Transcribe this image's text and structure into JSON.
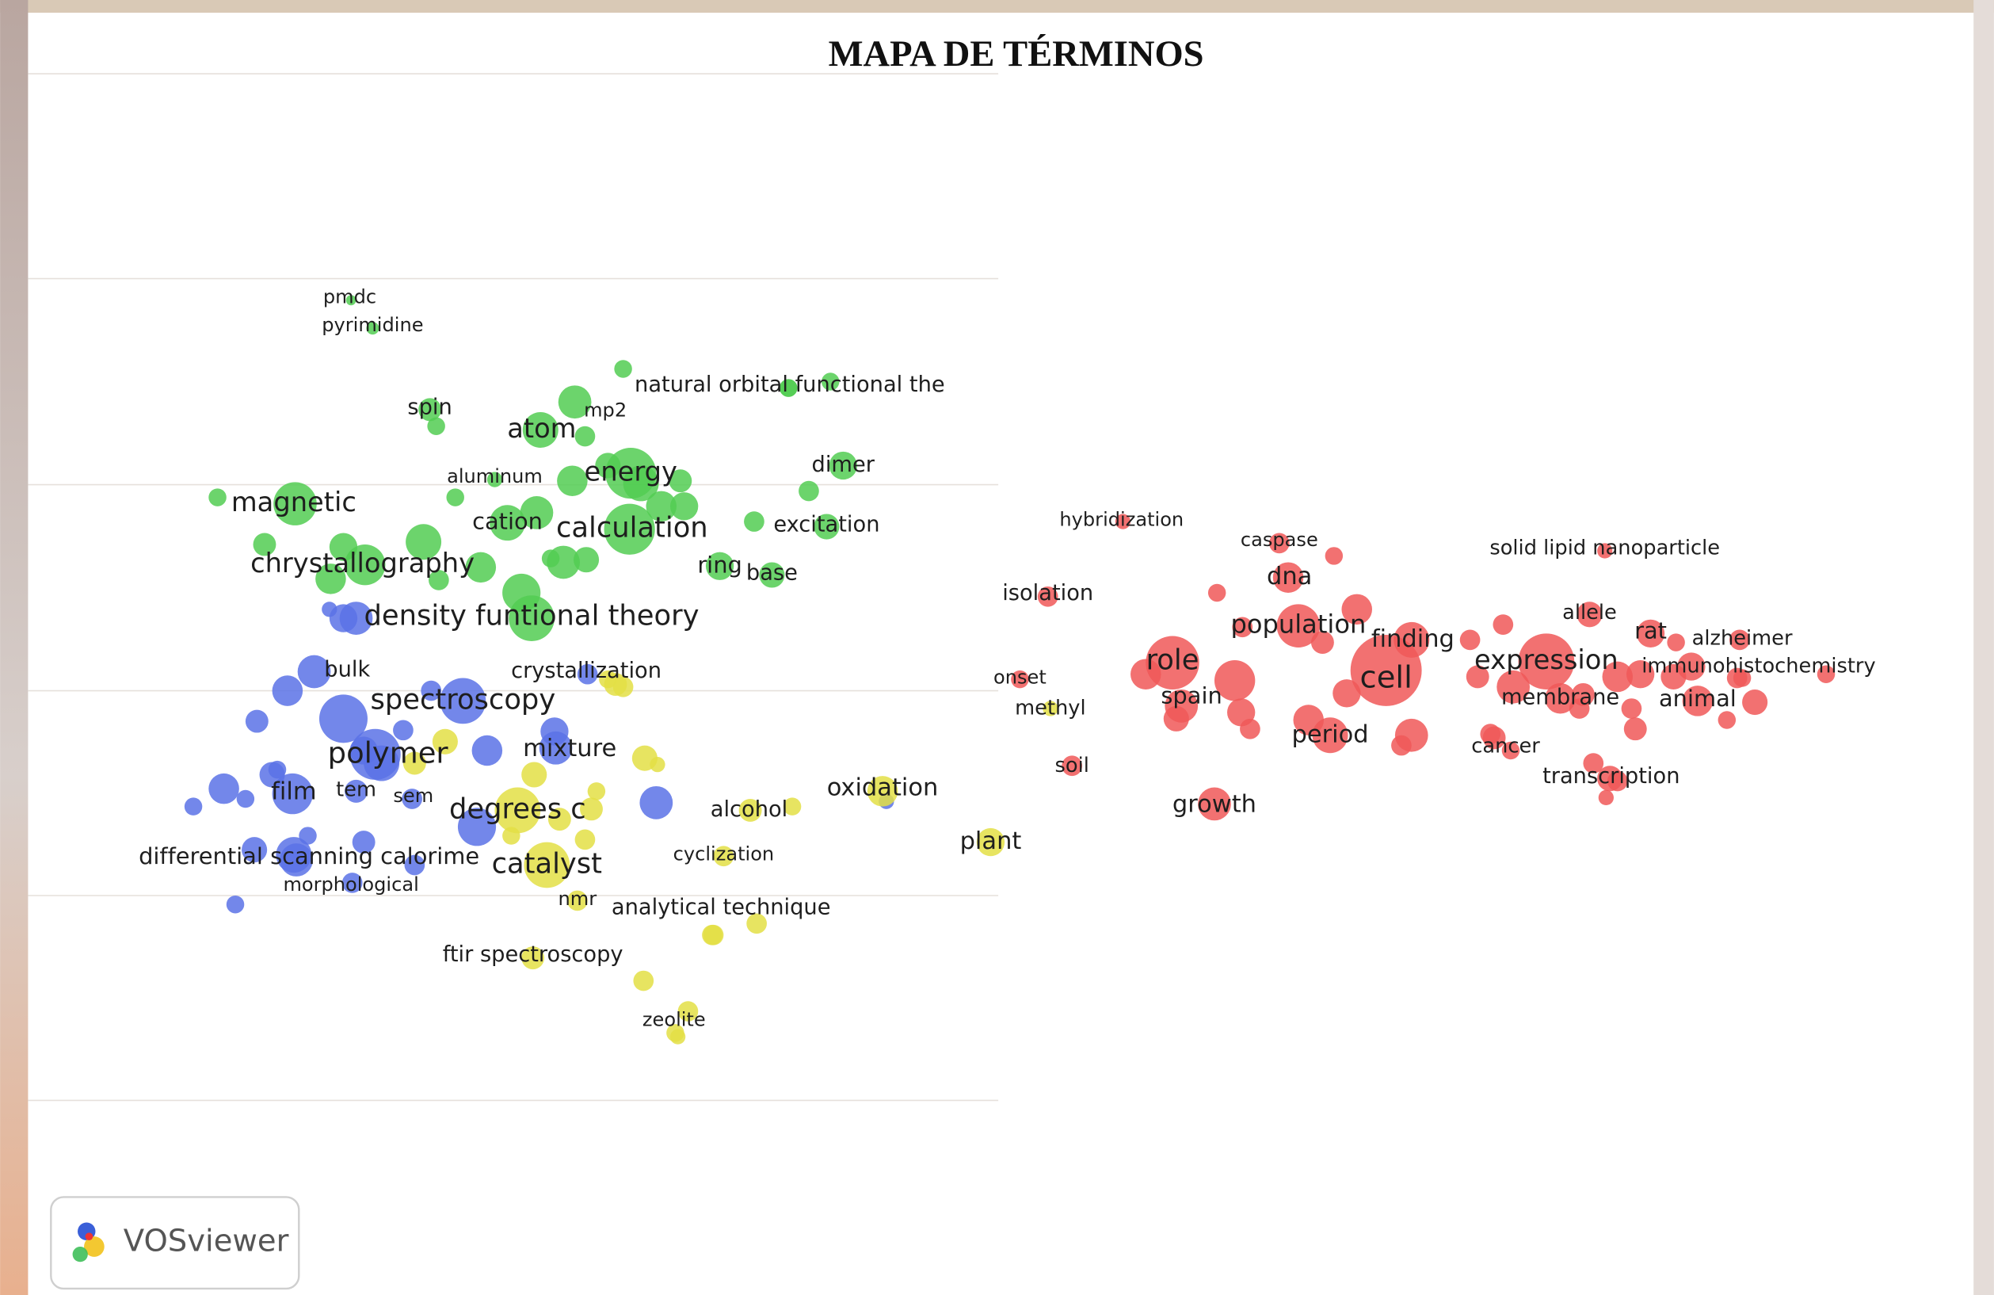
{
  "title": "MAPA DE TÉRMINOS",
  "logo": "VOSviewer",
  "clusters": [
    {
      "color": "#52cc52",
      "terms": [
        "pmdc",
        "pyrimidine",
        "natural orbital functional the",
        "spin",
        "mp2",
        "atom",
        "dimer",
        "aluminum",
        "energy",
        "magnetic",
        "cation",
        "calculation",
        "excitation",
        "chrystallography",
        "ring",
        "base",
        "density funtional theory"
      ]
    },
    {
      "color": "#5a72e6",
      "terms": [
        "bulk",
        "spectroscopy",
        "polymer",
        "mixture",
        "film",
        "tem",
        "sem",
        "differential scanning calorime",
        "morphological"
      ]
    },
    {
      "color": "#e3df45",
      "terms": [
        "crystallization",
        "degrees c",
        "alcohol",
        "oxidation",
        "catalyst",
        "cyclization",
        "plant",
        "nmr",
        "analytical technique",
        "ftir spectroscopy",
        "zeolite",
        "methyl"
      ]
    },
    {
      "color": "#f05858",
      "terms": [
        "hybridization",
        "caspase",
        "solid lipid nanoparticle",
        "isolation",
        "dna",
        "population",
        "allele",
        "finding",
        "rat",
        "alzheimer",
        "role",
        "expression",
        "immunohistochemistry",
        "onset",
        "cell",
        "spain",
        "membrane",
        "animal",
        "period",
        "cancer",
        "soil",
        "transcription",
        "growth"
      ]
    }
  ]
}
